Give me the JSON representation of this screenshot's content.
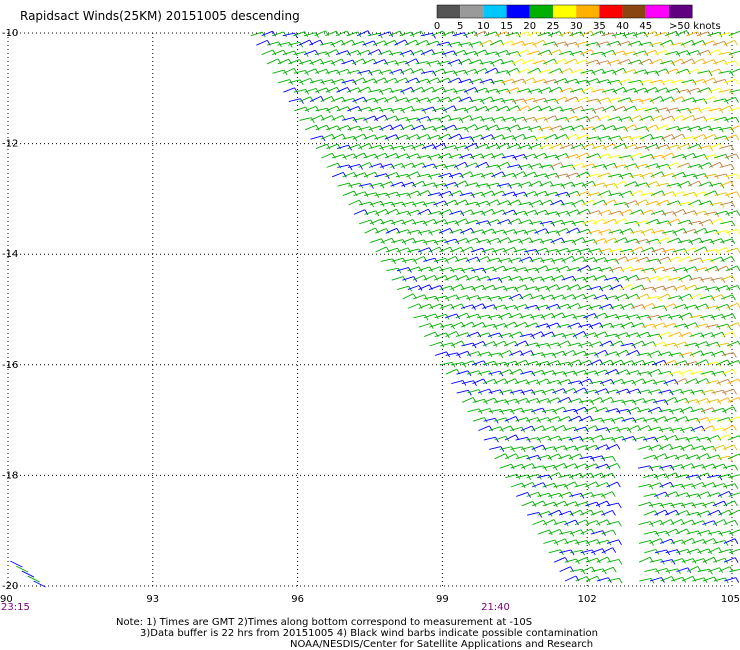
{
  "chart_data": {
    "type": "wind-barb map",
    "title": "Rapidsact Winds(25KM) 20151005 descending",
    "x_ticks": [
      "90",
      "93",
      "96",
      "99",
      "102",
      "105"
    ],
    "x_tick_values": [
      90,
      93,
      96,
      99,
      102,
      105
    ],
    "y_ticks": [
      "-10",
      "-12",
      "-14",
      "-16",
      "-18",
      "-20"
    ],
    "y_tick_values": [
      -10,
      -12,
      -14,
      -16,
      -18,
      -20
    ],
    "xlim": [
      90,
      105
    ],
    "ylim": [
      -20,
      -10
    ],
    "grid": true,
    "legend": {
      "placement": "top-right",
      "labels": [
        "0",
        "5",
        "10",
        "15",
        "20",
        "25",
        "30",
        "35",
        "40",
        "45",
        ">50 knots"
      ],
      "colors": [
        "#555555",
        "#9a9a9a",
        "#00c8ff",
        "#0000ff",
        "#00b000",
        "#ffff00",
        "#ffb000",
        "#ff0000",
        "#8b4513",
        "#ff00ff",
        "#600080"
      ]
    },
    "time_labels": [
      {
        "lon": 90,
        "text": "23:15"
      },
      {
        "lon": 100.1,
        "text": "21:40"
      }
    ],
    "swaths": [
      {
        "lon_start": 95.8,
        "lon_end": 105.2,
        "lat_top": -10,
        "lat_bottom": -20,
        "speed_range_knots": [
          10,
          30
        ]
      },
      {
        "lon_start": 90,
        "lon_end": 90.8,
        "lat_top": -19.5,
        "lat_bottom": -20,
        "speed_range_knots": [
          10,
          20
        ]
      }
    ]
  },
  "notes": {
    "line1": "Note: 1) Times are GMT 2)Times along bottom correspond to measurement at -10S",
    "line2": "3)Data buffer is 22 hrs from 20151005 4) Black wind barbs indicate possible contamination",
    "line3": "NOAA/NESDIS/Center for Satellite Applications and Research"
  }
}
